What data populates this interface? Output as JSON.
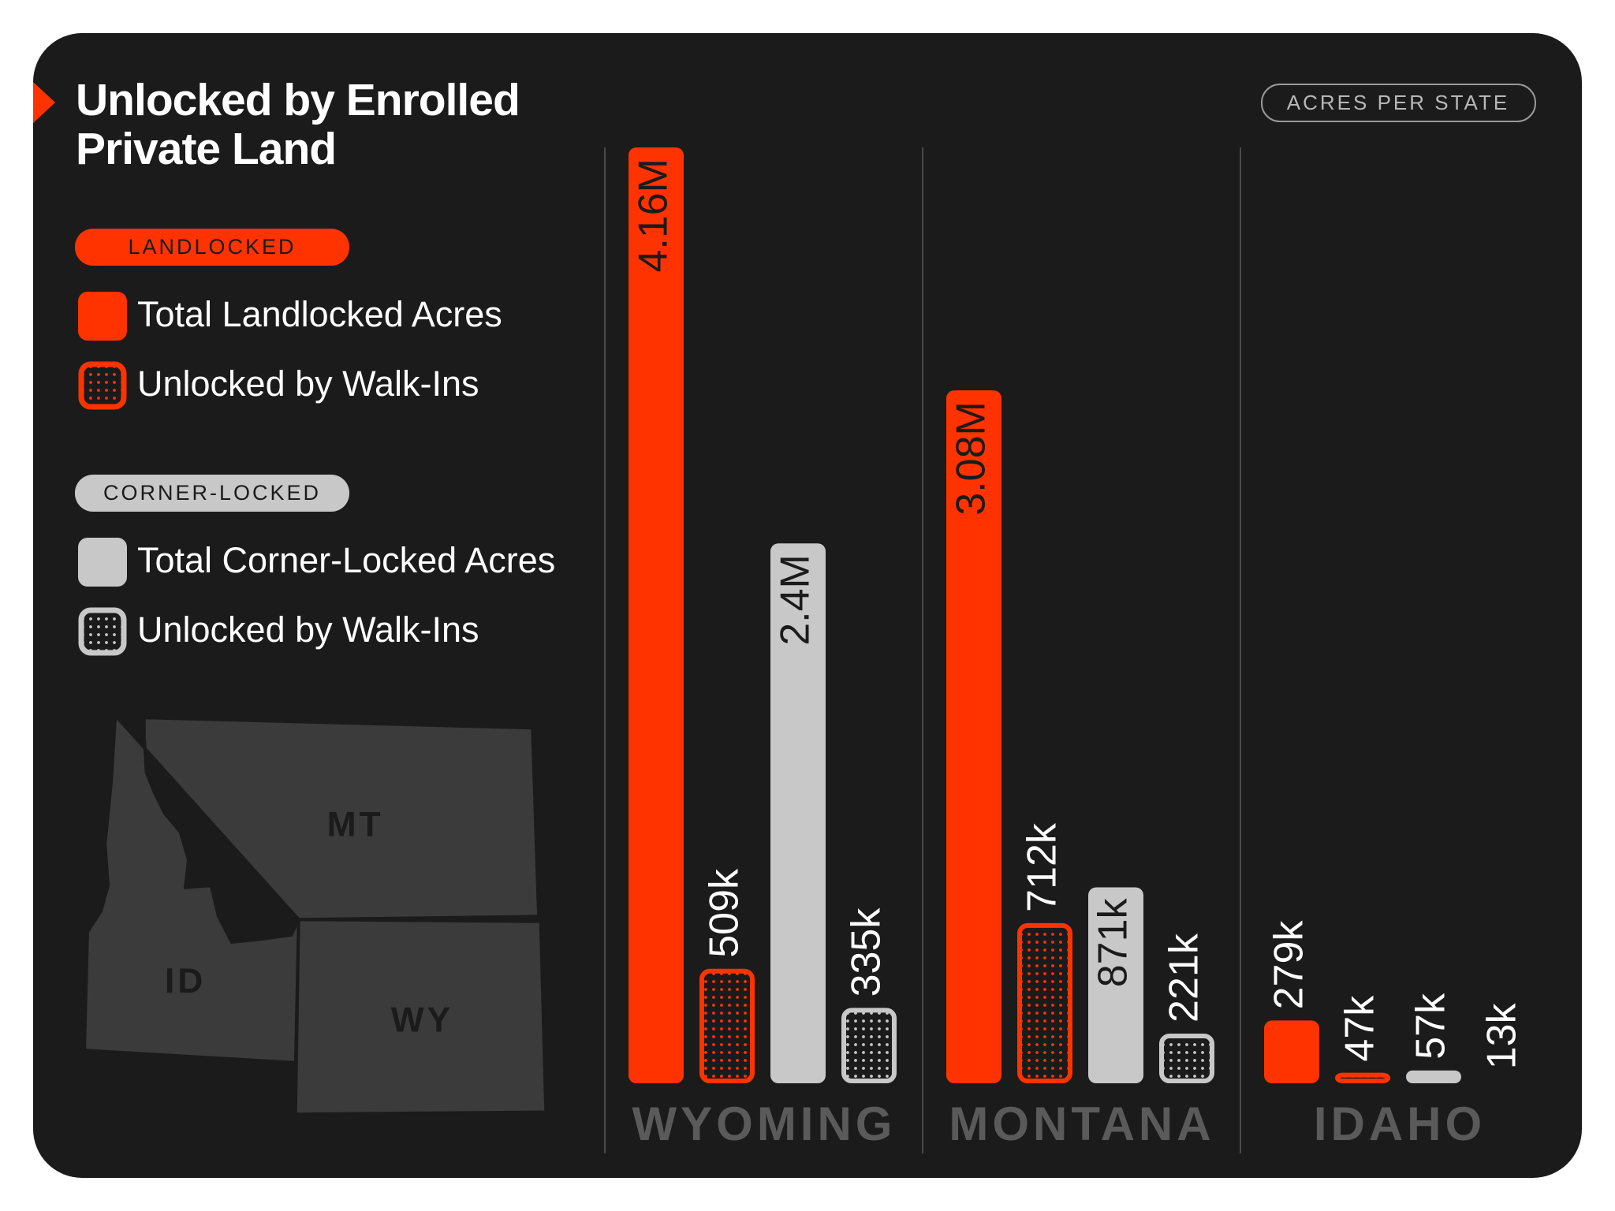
{
  "chart_data": {
    "type": "bar",
    "title": "Unlocked by Enrolled Private Land",
    "unit_label": "ACRES PER STATE",
    "categories": [
      "WYOMING",
      "MONTANA",
      "IDAHO"
    ],
    "legend_groups": [
      {
        "label": "LANDLOCKED",
        "color": "#ff3300"
      },
      {
        "label": "CORNER-LOCKED",
        "color": "#c8c8c8"
      }
    ],
    "series": [
      {
        "name": "Total Landlocked Acres",
        "color": "#ff3300",
        "pattern": "solid",
        "values": [
          4160000,
          3080000,
          279000
        ],
        "value_labels": [
          "4.16M",
          "3.08M",
          "279k"
        ]
      },
      {
        "name": "Unlocked by Walk-Ins",
        "color": "#ff3300",
        "pattern": "dots",
        "values": [
          509000,
          712000,
          47000
        ],
        "value_labels": [
          "509k",
          "712k",
          "47k"
        ]
      },
      {
        "name": "Total Corner-Locked Acres",
        "color": "#c8c8c8",
        "pattern": "solid",
        "values": [
          2400000,
          871000,
          57000
        ],
        "value_labels": [
          "2.4M",
          "871k",
          "57k"
        ]
      },
      {
        "name": "Unlocked by Walk-Ins",
        "color": "#c8c8c8",
        "pattern": "dots",
        "values": [
          335000,
          221000,
          13000
        ],
        "value_labels": [
          "335k",
          "221k",
          "13k"
        ]
      }
    ]
  },
  "map": {
    "labels": [
      "MT",
      "ID",
      "WY"
    ]
  }
}
